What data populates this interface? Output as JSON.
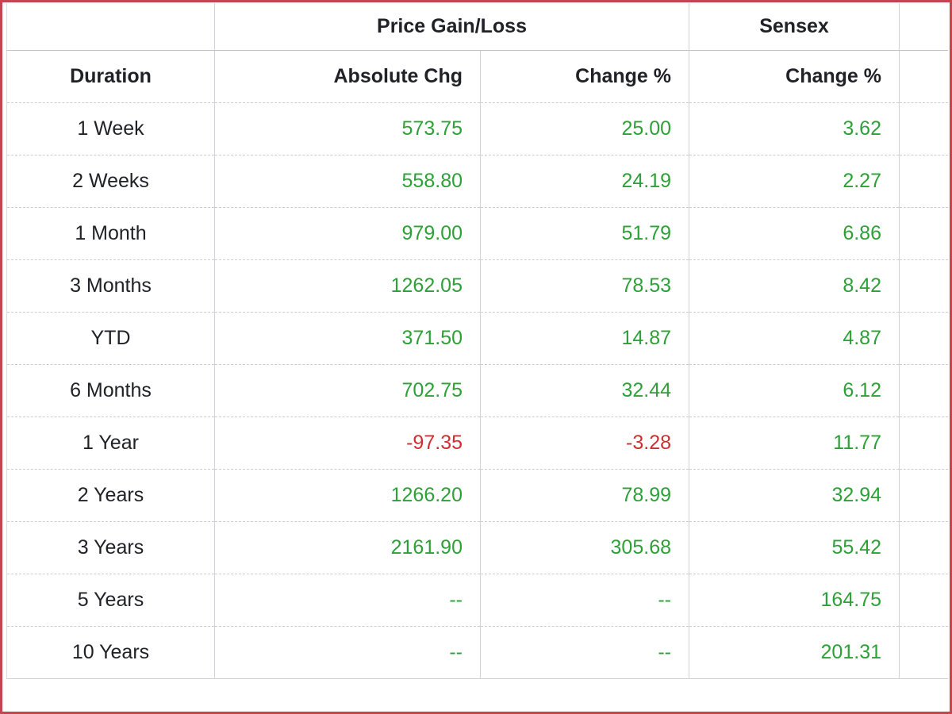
{
  "page": {
    "frame_border_color": "#c64350",
    "background_color": "#ffffff"
  },
  "chart_data": {
    "type": "table",
    "title": "",
    "group_headers": [
      {
        "label": "",
        "span": 1
      },
      {
        "label": "Price Gain/Loss",
        "span": 2
      },
      {
        "label": "Sensex",
        "span": 1
      },
      {
        "label": "",
        "span": 1
      }
    ],
    "columns": [
      "Duration",
      "Absolute Chg",
      "Change %",
      "Change %"
    ],
    "rows": [
      {
        "duration": "1 Week",
        "absolute_chg": "573.75",
        "change_pct": "25.00",
        "sensex_change_pct": "3.62"
      },
      {
        "duration": "2 Weeks",
        "absolute_chg": "558.80",
        "change_pct": "24.19",
        "sensex_change_pct": "2.27"
      },
      {
        "duration": "1 Month",
        "absolute_chg": "979.00",
        "change_pct": "51.79",
        "sensex_change_pct": "6.86"
      },
      {
        "duration": "3 Months",
        "absolute_chg": "1262.05",
        "change_pct": "78.53",
        "sensex_change_pct": "8.42"
      },
      {
        "duration": "YTD",
        "absolute_chg": "371.50",
        "change_pct": "14.87",
        "sensex_change_pct": "4.87"
      },
      {
        "duration": "6 Months",
        "absolute_chg": "702.75",
        "change_pct": "32.44",
        "sensex_change_pct": "6.12"
      },
      {
        "duration": "1 Year",
        "absolute_chg": "-97.35",
        "change_pct": "-3.28",
        "sensex_change_pct": "11.77"
      },
      {
        "duration": "2 Years",
        "absolute_chg": "1266.20",
        "change_pct": "78.99",
        "sensex_change_pct": "32.94"
      },
      {
        "duration": "3 Years",
        "absolute_chg": "2161.90",
        "change_pct": "305.68",
        "sensex_change_pct": "55.42"
      },
      {
        "duration": "5 Years",
        "absolute_chg": "--",
        "change_pct": "--",
        "sensex_change_pct": "164.75"
      },
      {
        "duration": "10 Years",
        "absolute_chg": "--",
        "change_pct": "--",
        "sensex_change_pct": "201.31"
      }
    ],
    "colors": {
      "positive_value": "#2da037",
      "negative_value": "#cd2f31",
      "header_text": "#202227"
    },
    "layout": {
      "grid": "on",
      "numeric_alignment": "right",
      "duration_alignment": "center"
    }
  }
}
